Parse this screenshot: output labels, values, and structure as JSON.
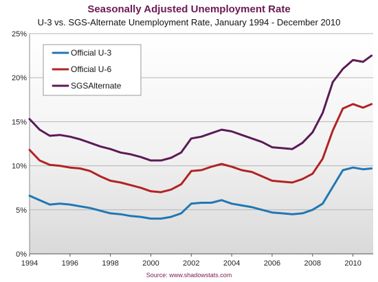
{
  "chart_data": {
    "type": "line",
    "title": "Seasonally Adjusted Unemployment Rate",
    "subtitle": "U-3 vs. SGS-Alternate Unemployment Rate, January 1994 - December 2010",
    "source": "Source: www.shadowstats.com",
    "xlabel": "",
    "ylabel": "",
    "xlim": [
      1994,
      2011
    ],
    "ylim": [
      0,
      25
    ],
    "x_ticks": [
      1994,
      1996,
      1998,
      2000,
      2002,
      2004,
      2006,
      2008,
      2010
    ],
    "x_tick_labels": [
      "1994",
      "1996",
      "1998",
      "2000",
      "2002",
      "2004",
      "2006",
      "2008",
      "2010"
    ],
    "y_ticks": [
      0,
      5,
      10,
      15,
      20,
      25
    ],
    "y_tick_labels": [
      "0%",
      "5%",
      "10%",
      "15%",
      "20%",
      "25%"
    ],
    "grid": true,
    "legend_position": "top-left",
    "series": [
      {
        "name": "Official U-3",
        "color": "#1f77b4",
        "x": [
          1994.0,
          1994.5,
          1995.0,
          1995.5,
          1996.0,
          1996.5,
          1997.0,
          1997.5,
          1998.0,
          1998.5,
          1999.0,
          1999.5,
          2000.0,
          2000.5,
          2001.0,
          2001.5,
          2002.0,
          2002.5,
          2003.0,
          2003.5,
          2004.0,
          2004.5,
          2005.0,
          2005.5,
          2006.0,
          2006.5,
          2007.0,
          2007.5,
          2008.0,
          2008.5,
          2009.0,
          2009.5,
          2010.0,
          2010.5,
          2010.92
        ],
        "values": [
          6.6,
          6.1,
          5.6,
          5.7,
          5.6,
          5.4,
          5.2,
          4.9,
          4.6,
          4.5,
          4.3,
          4.2,
          4.0,
          4.0,
          4.2,
          4.6,
          5.7,
          5.8,
          5.8,
          6.1,
          5.7,
          5.5,
          5.3,
          5.0,
          4.7,
          4.6,
          4.5,
          4.6,
          5.0,
          5.7,
          7.6,
          9.5,
          9.8,
          9.6,
          9.7
        ]
      },
      {
        "name": "Official U-6",
        "color": "#b22222",
        "x": [
          1994.0,
          1994.5,
          1995.0,
          1995.5,
          1996.0,
          1996.5,
          1997.0,
          1997.5,
          1998.0,
          1998.5,
          1999.0,
          1999.5,
          2000.0,
          2000.5,
          2001.0,
          2001.5,
          2002.0,
          2002.5,
          2003.0,
          2003.5,
          2004.0,
          2004.5,
          2005.0,
          2005.5,
          2006.0,
          2006.5,
          2007.0,
          2007.5,
          2008.0,
          2008.5,
          2009.0,
          2009.5,
          2010.0,
          2010.5,
          2010.92
        ],
        "values": [
          11.8,
          10.6,
          10.1,
          10.0,
          9.8,
          9.7,
          9.4,
          8.8,
          8.3,
          8.1,
          7.8,
          7.5,
          7.1,
          7.0,
          7.3,
          7.9,
          9.4,
          9.5,
          9.9,
          10.2,
          9.9,
          9.5,
          9.3,
          8.8,
          8.3,
          8.2,
          8.1,
          8.5,
          9.1,
          10.8,
          14.0,
          16.5,
          17.0,
          16.6,
          17.0
        ]
      },
      {
        "name": "SGSAlternate",
        "color": "#5b1a56",
        "x": [
          1994.0,
          1994.5,
          1995.0,
          1995.5,
          1996.0,
          1996.5,
          1997.0,
          1997.5,
          1998.0,
          1998.5,
          1999.0,
          1999.5,
          2000.0,
          2000.5,
          2001.0,
          2001.5,
          2002.0,
          2002.5,
          2003.0,
          2003.5,
          2004.0,
          2004.5,
          2005.0,
          2005.5,
          2006.0,
          2006.5,
          2007.0,
          2007.5,
          2008.0,
          2008.5,
          2009.0,
          2009.5,
          2010.0,
          2010.5,
          2010.92
        ],
        "values": [
          15.3,
          14.1,
          13.4,
          13.5,
          13.3,
          13.0,
          12.6,
          12.2,
          11.9,
          11.5,
          11.3,
          11.0,
          10.6,
          10.6,
          10.9,
          11.5,
          13.1,
          13.3,
          13.7,
          14.1,
          13.9,
          13.5,
          13.1,
          12.7,
          12.1,
          12.0,
          11.9,
          12.6,
          13.8,
          16.0,
          19.5,
          21.0,
          22.0,
          21.8,
          22.5
        ]
      }
    ]
  }
}
